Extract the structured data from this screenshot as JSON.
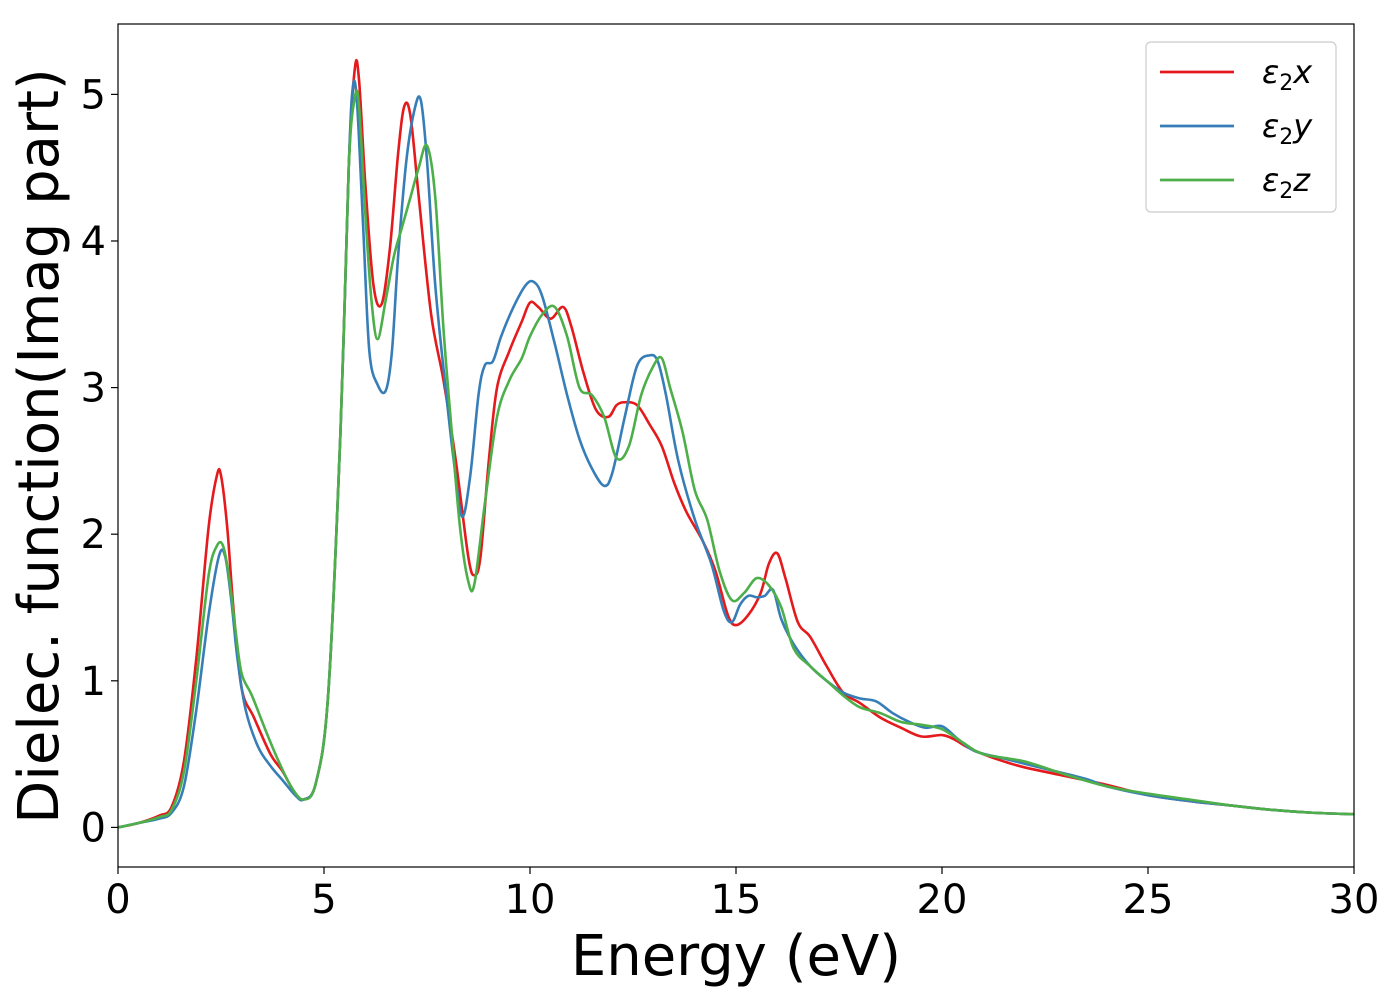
{
  "chart_data": {
    "type": "line",
    "xlabel": "Energy (eV)",
    "ylabel": "Dielec. function(Imag part)",
    "xlim": [
      0,
      30
    ],
    "ylim": [
      -0.27,
      5.48
    ],
    "xticks": [
      0,
      5,
      10,
      15,
      20,
      25,
      30
    ],
    "yticks": [
      0,
      1,
      2,
      3,
      4,
      5
    ],
    "grid": false,
    "legend_position": "top-right",
    "series": [
      {
        "name": "ε2x",
        "legend": {
          "base": "ε",
          "sub": "2",
          "axis": "x"
        },
        "color": "#e41a1c",
        "x": [
          0,
          0.5,
          1,
          1.3,
          1.6,
          1.9,
          2.2,
          2.4,
          2.5,
          2.65,
          2.8,
          3.0,
          3.3,
          3.7,
          4.0,
          4.3,
          4.5,
          4.8,
          5.1,
          5.4,
          5.6,
          5.75,
          5.85,
          6.0,
          6.2,
          6.4,
          6.6,
          6.8,
          6.95,
          7.1,
          7.3,
          7.6,
          7.9,
          8.2,
          8.5,
          8.65,
          8.8,
          9.0,
          9.2,
          9.5,
          9.8,
          10.0,
          10.2,
          10.5,
          10.8,
          11.0,
          11.3,
          11.6,
          11.9,
          12.1,
          12.3,
          12.6,
          12.9,
          13.2,
          13.5,
          13.8,
          14.2,
          14.5,
          14.8,
          15.0,
          15.3,
          15.6,
          15.8,
          16.0,
          16.2,
          16.5,
          16.8,
          17.2,
          17.6,
          18.0,
          18.5,
          19.0,
          19.5,
          20.0,
          20.3,
          20.6,
          21.0,
          21.5,
          22.0,
          23.0,
          24.0,
          25.0,
          26.0,
          27.0,
          28.0,
          29.0,
          30.0
        ],
        "y": [
          0,
          0.03,
          0.08,
          0.14,
          0.45,
          1.15,
          2.05,
          2.4,
          2.4,
          2.05,
          1.5,
          0.95,
          0.75,
          0.5,
          0.38,
          0.23,
          0.19,
          0.3,
          0.9,
          2.7,
          4.5,
          5.18,
          5.1,
          4.4,
          3.7,
          3.57,
          3.95,
          4.6,
          4.92,
          4.85,
          4.3,
          3.5,
          3.05,
          2.5,
          1.85,
          1.72,
          1.85,
          2.5,
          3.0,
          3.25,
          3.45,
          3.58,
          3.55,
          3.47,
          3.55,
          3.42,
          3.1,
          2.85,
          2.8,
          2.88,
          2.9,
          2.88,
          2.75,
          2.6,
          2.35,
          2.15,
          1.95,
          1.75,
          1.45,
          1.38,
          1.45,
          1.6,
          1.8,
          1.87,
          1.7,
          1.4,
          1.3,
          1.1,
          0.92,
          0.85,
          0.75,
          0.68,
          0.62,
          0.63,
          0.6,
          0.55,
          0.5,
          0.45,
          0.41,
          0.35,
          0.29,
          0.22,
          0.18,
          0.15,
          0.12,
          0.1,
          0.09
        ]
      },
      {
        "name": "ε2y",
        "legend": {
          "base": "ε",
          "sub": "2",
          "axis": "y"
        },
        "color": "#377eb8",
        "x": [
          0,
          0.5,
          1,
          1.3,
          1.6,
          1.9,
          2.2,
          2.45,
          2.6,
          2.75,
          2.9,
          3.1,
          3.4,
          3.7,
          4.0,
          4.3,
          4.5,
          4.8,
          5.1,
          5.4,
          5.6,
          5.7,
          5.8,
          5.95,
          6.1,
          6.3,
          6.5,
          6.65,
          6.8,
          7.0,
          7.2,
          7.35,
          7.5,
          7.7,
          7.95,
          8.15,
          8.35,
          8.55,
          8.75,
          8.9,
          9.1,
          9.3,
          9.6,
          9.9,
          10.1,
          10.3,
          10.6,
          10.9,
          11.2,
          11.5,
          11.8,
          12.0,
          12.3,
          12.6,
          12.9,
          13.1,
          13.3,
          13.6,
          14.0,
          14.4,
          14.7,
          14.9,
          15.1,
          15.3,
          15.5,
          15.7,
          15.9,
          16.1,
          16.4,
          16.8,
          17.2,
          17.6,
          18.0,
          18.4,
          18.8,
          19.2,
          19.6,
          20.0,
          20.4,
          20.8,
          21.5,
          22.5,
          23.5,
          24.0,
          25.0,
          26.0,
          27.0,
          28.0,
          29.0,
          30.0
        ],
        "y": [
          0,
          0.03,
          0.06,
          0.1,
          0.28,
          0.8,
          1.45,
          1.85,
          1.85,
          1.55,
          1.15,
          0.8,
          0.55,
          0.42,
          0.32,
          0.22,
          0.19,
          0.3,
          0.9,
          2.7,
          4.5,
          5.05,
          4.95,
          4.1,
          3.25,
          3.02,
          2.98,
          3.25,
          3.9,
          4.55,
          4.9,
          4.96,
          4.55,
          3.7,
          3.0,
          2.5,
          2.12,
          2.4,
          2.95,
          3.15,
          3.18,
          3.35,
          3.55,
          3.7,
          3.72,
          3.62,
          3.3,
          2.95,
          2.65,
          2.45,
          2.33,
          2.42,
          2.8,
          3.15,
          3.22,
          3.18,
          2.95,
          2.5,
          2.1,
          1.8,
          1.48,
          1.4,
          1.52,
          1.58,
          1.57,
          1.58,
          1.62,
          1.42,
          1.25,
          1.1,
          1.0,
          0.92,
          0.88,
          0.86,
          0.78,
          0.72,
          0.68,
          0.69,
          0.6,
          0.52,
          0.47,
          0.4,
          0.33,
          0.28,
          0.22,
          0.18,
          0.15,
          0.12,
          0.1,
          0.09
        ]
      },
      {
        "name": "ε2z",
        "legend": {
          "base": "ε",
          "sub": "2",
          "axis": "z"
        },
        "color": "#4daf4a",
        "x": [
          0,
          0.5,
          1,
          1.3,
          1.6,
          1.9,
          2.2,
          2.4,
          2.55,
          2.7,
          2.85,
          3.0,
          3.25,
          3.6,
          3.9,
          4.2,
          4.5,
          4.8,
          5.1,
          5.4,
          5.6,
          5.75,
          5.85,
          6.0,
          6.15,
          6.3,
          6.5,
          6.7,
          6.9,
          7.1,
          7.3,
          7.5,
          7.7,
          7.9,
          8.1,
          8.3,
          8.5,
          8.65,
          8.9,
          9.2,
          9.5,
          9.8,
          10.0,
          10.3,
          10.6,
          10.9,
          11.2,
          11.5,
          11.8,
          12.1,
          12.4,
          12.7,
          13.0,
          13.2,
          13.4,
          13.7,
          14.0,
          14.3,
          14.6,
          14.9,
          15.2,
          15.5,
          15.8,
          16.1,
          16.4,
          16.8,
          17.2,
          17.6,
          18.0,
          18.5,
          19.0,
          19.5,
          20.0,
          20.5,
          21.0,
          22.0,
          23.0,
          24.0,
          25.0,
          26.0,
          27.0,
          28.0,
          29.0,
          30.0
        ],
        "y": [
          0,
          0.03,
          0.07,
          0.12,
          0.38,
          1.0,
          1.72,
          1.92,
          1.92,
          1.7,
          1.35,
          1.05,
          0.9,
          0.65,
          0.45,
          0.28,
          0.19,
          0.3,
          0.9,
          2.7,
          4.5,
          4.98,
          4.92,
          4.2,
          3.6,
          3.33,
          3.6,
          3.9,
          4.1,
          4.3,
          4.5,
          4.65,
          4.3,
          3.4,
          2.7,
          2.05,
          1.68,
          1.66,
          2.2,
          2.8,
          3.05,
          3.2,
          3.35,
          3.5,
          3.55,
          3.35,
          3.0,
          2.95,
          2.8,
          2.52,
          2.6,
          2.95,
          3.15,
          3.2,
          3.0,
          2.7,
          2.3,
          2.1,
          1.75,
          1.55,
          1.6,
          1.7,
          1.65,
          1.5,
          1.22,
          1.1,
          1.0,
          0.9,
          0.82,
          0.78,
          0.72,
          0.7,
          0.67,
          0.58,
          0.5,
          0.45,
          0.36,
          0.28,
          0.23,
          0.19,
          0.15,
          0.12,
          0.1,
          0.09
        ]
      }
    ]
  }
}
